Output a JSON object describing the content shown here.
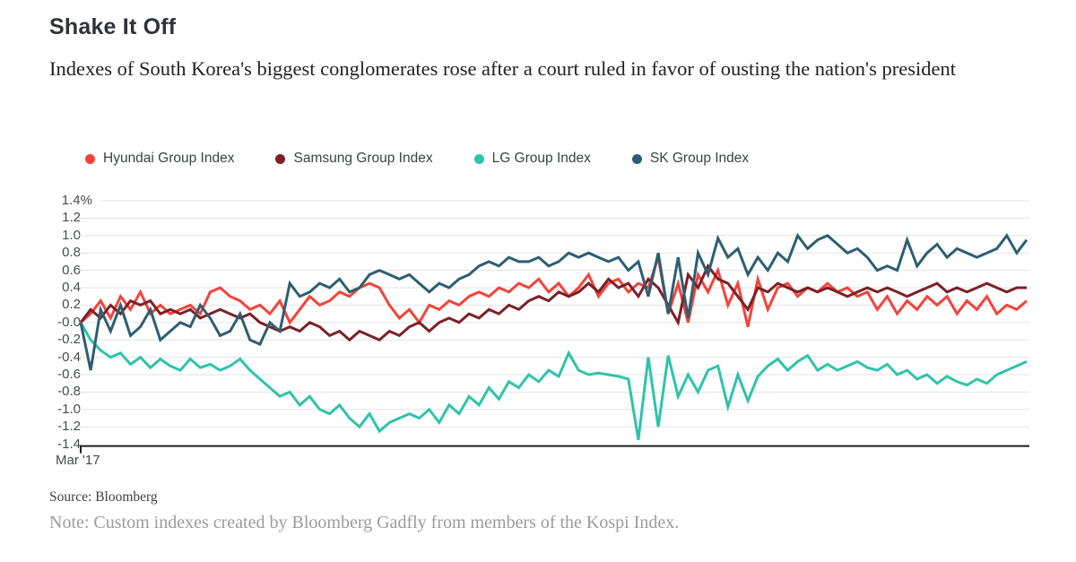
{
  "header": {
    "title": "Shake It Off",
    "subtitle": "Indexes of South Korea's biggest conglomerates rose after a court ruled in favor of ousting the nation's president"
  },
  "legend": {
    "items": [
      {
        "label": "Hyundai Group Index",
        "color": "#f4433a"
      },
      {
        "label": "Samsung Group Index",
        "color": "#7c2027"
      },
      {
        "label": "LG Group Index",
        "color": "#2ec4a9"
      },
      {
        "label": "SK Group Index",
        "color": "#2d5e72"
      }
    ]
  },
  "chart_data": {
    "type": "line",
    "title": "Shake It Off",
    "xlabel": "",
    "ylabel": "%",
    "ylim": [
      -1.4,
      1.4
    ],
    "grid": true,
    "legend_position": "top",
    "colors": {
      "gridline": "#e3e3e3",
      "axis": "#1d1d1d"
    },
    "x_axis": {
      "start_label": "Mar '17"
    },
    "y_axis": {
      "tick_labels": [
        "1.4%",
        "1.2",
        "1.0",
        "0.8",
        "0.6",
        "0.4",
        "0.2",
        "-0.0",
        "-0.2",
        "-0.4",
        "-0.6",
        "-0.8",
        "-1.0",
        "-1.2",
        "-1.4"
      ],
      "tick_values": [
        1.4,
        1.2,
        1.0,
        0.8,
        0.6,
        0.4,
        0.2,
        0.0,
        -0.2,
        -0.4,
        -0.6,
        -0.8,
        -1.0,
        -1.2,
        -1.4
      ]
    },
    "series": [
      {
        "name": "Hyundai Group Index",
        "color": "#f4433a",
        "values": [
          0.0,
          0.1,
          0.25,
          0.05,
          0.3,
          0.15,
          0.35,
          0.1,
          0.2,
          0.1,
          0.15,
          0.2,
          0.1,
          0.35,
          0.4,
          0.3,
          0.25,
          0.15,
          0.2,
          0.1,
          0.25,
          0.0,
          0.15,
          0.3,
          0.2,
          0.25,
          0.35,
          0.3,
          0.4,
          0.45,
          0.4,
          0.2,
          0.05,
          0.15,
          0.0,
          0.2,
          0.15,
          0.25,
          0.2,
          0.3,
          0.35,
          0.3,
          0.4,
          0.35,
          0.45,
          0.4,
          0.5,
          0.35,
          0.45,
          0.3,
          0.4,
          0.55,
          0.3,
          0.45,
          0.5,
          0.35,
          0.45,
          0.4,
          0.75,
          0.1,
          0.45,
          0.0,
          0.55,
          0.35,
          0.6,
          0.2,
          0.45,
          -0.05,
          0.5,
          0.15,
          0.4,
          0.45,
          0.3,
          0.4,
          0.35,
          0.45,
          0.35,
          0.4,
          0.3,
          0.35,
          0.15,
          0.3,
          0.1,
          0.25,
          0.15,
          0.3,
          0.2,
          0.3,
          0.1,
          0.25,
          0.15,
          0.3,
          0.1,
          0.2,
          0.15,
          0.25
        ]
      },
      {
        "name": "Samsung Group Index",
        "color": "#7c2027",
        "values": [
          0.0,
          0.15,
          0.05,
          0.2,
          0.1,
          0.25,
          0.2,
          0.25,
          0.1,
          0.15,
          0.1,
          0.15,
          0.05,
          0.1,
          0.15,
          0.1,
          0.05,
          0.1,
          0.0,
          -0.05,
          -0.1,
          -0.05,
          -0.1,
          0.0,
          -0.05,
          -0.15,
          -0.1,
          -0.2,
          -0.1,
          -0.15,
          -0.2,
          -0.1,
          -0.15,
          -0.05,
          0.0,
          -0.1,
          0.0,
          0.05,
          0.0,
          0.1,
          0.05,
          0.15,
          0.1,
          0.2,
          0.15,
          0.25,
          0.3,
          0.25,
          0.35,
          0.3,
          0.35,
          0.45,
          0.35,
          0.5,
          0.4,
          0.45,
          0.3,
          0.5,
          0.4,
          0.2,
          0.0,
          0.55,
          0.4,
          0.65,
          0.5,
          0.45,
          0.3,
          0.15,
          0.4,
          0.35,
          0.45,
          0.4,
          0.35,
          0.4,
          0.35,
          0.4,
          0.35,
          0.3,
          0.35,
          0.4,
          0.35,
          0.4,
          0.35,
          0.3,
          0.35,
          0.4,
          0.45,
          0.35,
          0.4,
          0.35,
          0.4,
          0.45,
          0.4,
          0.35,
          0.4,
          0.4
        ]
      },
      {
        "name": "LG Group Index",
        "color": "#2ec4a9",
        "values": [
          0.0,
          -0.2,
          -0.32,
          -0.4,
          -0.35,
          -0.48,
          -0.4,
          -0.52,
          -0.42,
          -0.5,
          -0.55,
          -0.42,
          -0.52,
          -0.48,
          -0.55,
          -0.5,
          -0.42,
          -0.55,
          -0.65,
          -0.75,
          -0.85,
          -0.8,
          -0.95,
          -0.85,
          -1.0,
          -1.05,
          -0.95,
          -1.1,
          -1.2,
          -1.05,
          -1.25,
          -1.15,
          -1.1,
          -1.05,
          -1.1,
          -1.0,
          -1.15,
          -0.95,
          -1.05,
          -0.85,
          -0.95,
          -0.75,
          -0.88,
          -0.68,
          -0.75,
          -0.6,
          -0.68,
          -0.55,
          -0.62,
          -0.35,
          -0.55,
          -0.6,
          -0.58,
          -0.6,
          -0.62,
          -0.65,
          -1.35,
          -0.4,
          -1.2,
          -0.38,
          -0.85,
          -0.6,
          -0.8,
          -0.55,
          -0.5,
          -0.97,
          -0.6,
          -0.9,
          -0.62,
          -0.5,
          -0.42,
          -0.55,
          -0.45,
          -0.38,
          -0.55,
          -0.48,
          -0.55,
          -0.5,
          -0.45,
          -0.52,
          -0.55,
          -0.48,
          -0.6,
          -0.55,
          -0.65,
          -0.6,
          -0.7,
          -0.62,
          -0.68,
          -0.72,
          -0.65,
          -0.7,
          -0.6,
          -0.55,
          -0.5,
          -0.45
        ]
      },
      {
        "name": "SK Group Index",
        "color": "#2d5e72",
        "values": [
          0.0,
          -0.55,
          0.15,
          -0.1,
          0.2,
          -0.15,
          -0.05,
          0.15,
          -0.2,
          -0.1,
          0.0,
          -0.05,
          0.2,
          0.05,
          -0.15,
          -0.1,
          0.1,
          -0.2,
          -0.25,
          0.0,
          -0.1,
          0.45,
          0.3,
          0.35,
          0.45,
          0.4,
          0.5,
          0.35,
          0.4,
          0.55,
          0.6,
          0.55,
          0.5,
          0.55,
          0.45,
          0.35,
          0.45,
          0.4,
          0.5,
          0.55,
          0.65,
          0.7,
          0.65,
          0.75,
          0.7,
          0.7,
          0.75,
          0.65,
          0.7,
          0.8,
          0.75,
          0.8,
          0.75,
          0.7,
          0.75,
          0.6,
          0.7,
          0.3,
          0.8,
          0.1,
          0.75,
          0.05,
          0.8,
          0.55,
          0.97,
          0.75,
          0.85,
          0.55,
          0.75,
          0.6,
          0.8,
          0.7,
          1.0,
          0.85,
          0.95,
          1.0,
          0.9,
          0.8,
          0.85,
          0.75,
          0.6,
          0.65,
          0.6,
          0.95,
          0.65,
          0.8,
          0.9,
          0.75,
          0.85,
          0.8,
          0.75,
          0.8,
          0.85,
          1.0,
          0.8,
          0.95
        ]
      }
    ]
  },
  "footer": {
    "source": "Source: Bloomberg",
    "note": "Note: Custom indexes created by Bloomberg Gadfly from members of the Kospi Index."
  }
}
